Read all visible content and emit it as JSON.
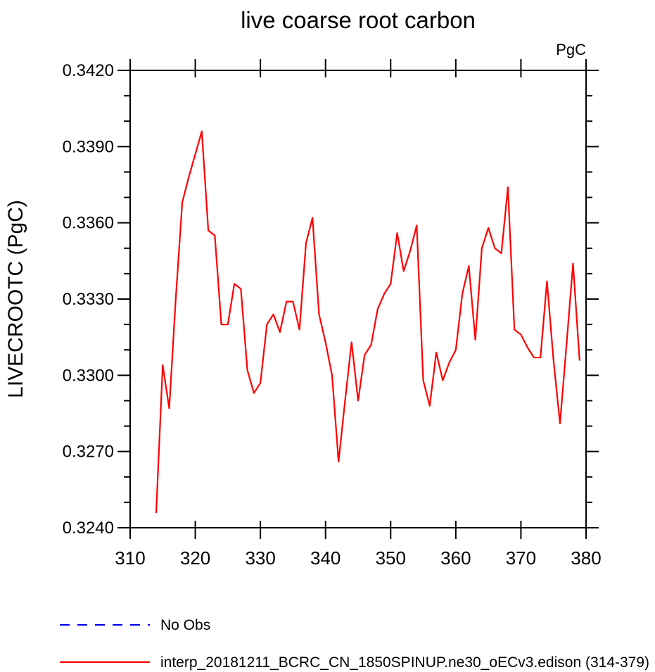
{
  "chart_data": {
    "type": "line",
    "title": "live coarse root carbon",
    "unit": "PgC",
    "ylabel": "LIVECROOTC  (PgC)",
    "xlim": [
      310,
      380
    ],
    "ylim": [
      0.324,
      0.342
    ],
    "x_ticks": [
      310,
      320,
      330,
      340,
      350,
      360,
      370,
      380
    ],
    "y_ticks_major": [
      0.324,
      0.327,
      0.33,
      0.333,
      0.336,
      0.339,
      0.342
    ],
    "y_minor_step": 0.001,
    "y_tick_decimals": 4,
    "grid": false,
    "legend_position": "bottom-left",
    "series": [
      {
        "name": "No Obs",
        "color": "#0000ee",
        "style": "dashed",
        "x": [],
        "values": []
      },
      {
        "name": "interp_20181211_BCRC_CN_1850SPINUP.ne30_oECv3.edison (314-379)",
        "color": "#ff0000",
        "style": "solid",
        "x": [
          314,
          315,
          316,
          317,
          318,
          319,
          320,
          321,
          322,
          323,
          324,
          325,
          326,
          327,
          328,
          329,
          330,
          331,
          332,
          333,
          334,
          335,
          336,
          337,
          338,
          339,
          340,
          341,
          342,
          343,
          344,
          345,
          346,
          347,
          348,
          349,
          350,
          351,
          352,
          353,
          354,
          355,
          356,
          357,
          358,
          359,
          360,
          361,
          362,
          363,
          364,
          365,
          366,
          367,
          368,
          369,
          370,
          371,
          372,
          373,
          374,
          375,
          376,
          377,
          378,
          379
        ],
        "values": [
          0.3246,
          0.3304,
          0.3287,
          0.333,
          0.3368,
          0.3378,
          0.3387,
          0.3396,
          0.3357,
          0.3355,
          0.332,
          0.332,
          0.3336,
          0.3334,
          0.3302,
          0.3293,
          0.3297,
          0.332,
          0.3324,
          0.3317,
          0.3329,
          0.3329,
          0.3318,
          0.3352,
          0.3362,
          0.3324,
          0.3313,
          0.33,
          0.3266,
          0.329,
          0.3313,
          0.329,
          0.3308,
          0.3312,
          0.3326,
          0.3332,
          0.3336,
          0.3356,
          0.3341,
          0.3349,
          0.3359,
          0.3298,
          0.3288,
          0.3309,
          0.3298,
          0.3305,
          0.331,
          0.3332,
          0.3343,
          0.3314,
          0.335,
          0.3358,
          0.335,
          0.3348,
          0.3374,
          0.3318,
          0.3316,
          0.3311,
          0.3307,
          0.3307,
          0.3337,
          0.3306,
          0.3281,
          0.3312,
          0.3344,
          0.3306
        ]
      }
    ]
  }
}
